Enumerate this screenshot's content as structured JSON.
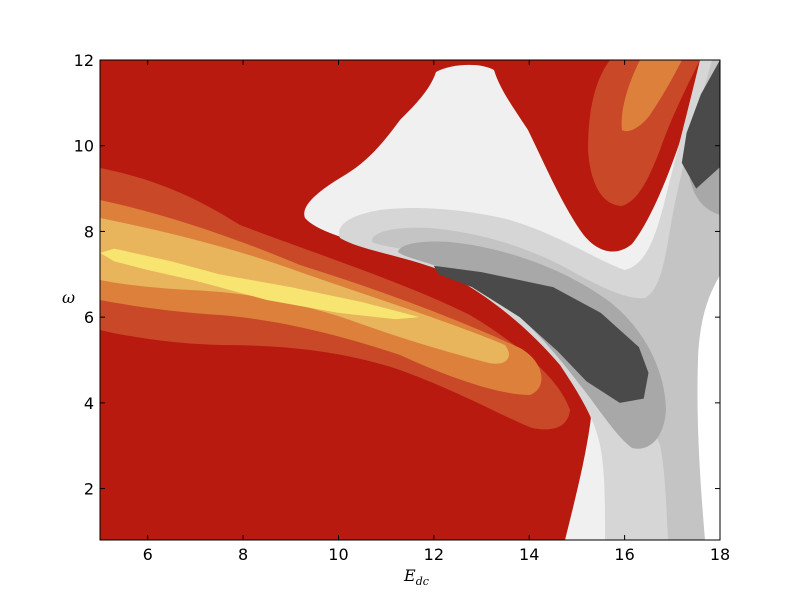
{
  "chart_data": {
    "type": "heatmap",
    "title": "",
    "xlabel": "E",
    "xlabel_sub": "dc",
    "ylabel": "ω",
    "xlim": [
      5,
      18
    ],
    "ylim": [
      0.8,
      12
    ],
    "xticks": [
      6,
      8,
      10,
      12,
      14,
      16,
      18
    ],
    "yticks": [
      2,
      4,
      6,
      8,
      10,
      12
    ],
    "grid": false,
    "colormap_levels": [
      "#4a4a4a",
      "#a8a8a8",
      "#c4c4c4",
      "#d6d6d6",
      "#f0f0f0",
      "#b81a10",
      "#c84828",
      "#dc803c",
      "#e8b45c",
      "#f8e470"
    ],
    "regions": [
      {
        "level": "peak",
        "color": "#f8e470",
        "description": "highest positive band",
        "outline": [
          [
            5,
            7.5
          ],
          [
            5.3,
            7.6
          ],
          [
            6.5,
            7.3
          ],
          [
            7.5,
            7.0
          ],
          [
            9,
            6.7
          ],
          [
            10.5,
            6.35
          ],
          [
            11.7,
            6.0
          ],
          [
            11.2,
            5.95
          ],
          [
            10,
            6.1
          ],
          [
            8.5,
            6.4
          ],
          [
            7,
            6.85
          ],
          [
            6,
            7.1
          ],
          [
            5.3,
            7.3
          ]
        ]
      },
      {
        "level": "negative-min",
        "color": "#4a4a4a",
        "description": "lowest negative band",
        "outline": [
          [
            12.0,
            7.2
          ],
          [
            13.0,
            7.05
          ],
          [
            14.5,
            6.7
          ],
          [
            15.5,
            6.1
          ],
          [
            16.3,
            5.3
          ],
          [
            16.5,
            4.7
          ],
          [
            16.4,
            4.1
          ],
          [
            15.9,
            4.0
          ],
          [
            15.2,
            4.5
          ],
          [
            14.6,
            5.2
          ],
          [
            13.8,
            6.0
          ],
          [
            12.8,
            6.7
          ],
          [
            12.1,
            7.0
          ]
        ]
      },
      {
        "level": "negative-min",
        "color": "#4a4a4a",
        "description": "upper-right negative pocket",
        "outline": [
          [
            18,
            12
          ],
          [
            17.6,
            11.2
          ],
          [
            17.3,
            10.3
          ],
          [
            17.2,
            9.6
          ],
          [
            17.5,
            9.0
          ],
          [
            18,
            9.5
          ]
        ]
      }
    ]
  }
}
